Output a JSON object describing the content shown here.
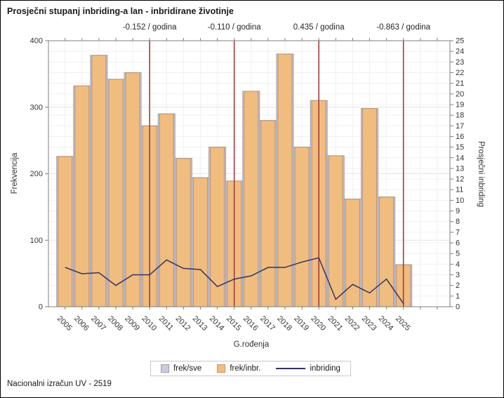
{
  "title": "Prosječni stupanj inbriding-a lan - inbridirane životinje",
  "footer": "Nacionalni izračun UV - 2519",
  "legend": {
    "items": [
      {
        "label": "frek/sve",
        "type": "box",
        "color": "#ccccdd",
        "border": "#9d9dae"
      },
      {
        "label": "frek/inbr.",
        "type": "box",
        "color": "#f0bd7e",
        "border": "#c9986a"
      },
      {
        "label": "inbriding",
        "type": "line",
        "color": "#333366"
      }
    ]
  },
  "chart_data": {
    "type": "bar",
    "title": "Prosječni stupanj inbriding-a lan - inbridirane životinje",
    "xlabel": "G.rođenja",
    "ylabel_left": "Frekvencija",
    "ylabel_right": "Prosječni inbriding",
    "ylim_left": [
      0,
      400
    ],
    "ylim_right": [
      0,
      25
    ],
    "y_ticks_left": [
      0,
      100,
      200,
      300,
      400
    ],
    "y_ticks_right": [
      0,
      1,
      2,
      3,
      4,
      5,
      6,
      7,
      8,
      9,
      10,
      11,
      12,
      13,
      14,
      15,
      16,
      17,
      18,
      19,
      20,
      21,
      22,
      23,
      24,
      25
    ],
    "grid": true,
    "legend_position": "bottom",
    "categories": [
      "2005",
      "2006",
      "2007",
      "2008",
      "2009",
      "2010",
      "2011",
      "2012",
      "2013",
      "2014",
      "2015",
      "2016",
      "2017",
      "2018",
      "2019",
      "2020",
      "2021",
      "2022",
      "2023",
      "2024",
      "2025"
    ],
    "series": [
      {
        "name": "frek/sve",
        "type": "bar",
        "axis": "left",
        "color": "#ccccdd",
        "border": "#9d9dae",
        "values": [
          226,
          332,
          378,
          342,
          352,
          272,
          290,
          223,
          194,
          240,
          189,
          324,
          280,
          380,
          240,
          310,
          227,
          162,
          298,
          165,
          63
        ]
      },
      {
        "name": "frek/inbr.",
        "type": "bar",
        "axis": "left",
        "color": "#f0bd7e",
        "border": "#b98e72",
        "values": [
          226,
          332,
          378,
          342,
          352,
          272,
          290,
          223,
          194,
          240,
          189,
          324,
          280,
          380,
          240,
          310,
          227,
          162,
          298,
          165,
          63
        ]
      },
      {
        "name": "inbriding",
        "type": "line",
        "axis": "right",
        "color": "#333366",
        "values": [
          3.7,
          3.1,
          3.2,
          2.0,
          3.0,
          3.0,
          4.4,
          3.6,
          3.5,
          1.9,
          2.6,
          2.9,
          3.7,
          3.7,
          4.2,
          4.6,
          0.7,
          2.1,
          1.3,
          2.6,
          0.3
        ]
      }
    ],
    "annotations": [
      {
        "label": "-0.152 / godina",
        "x_year": "2010"
      },
      {
        "label": "-0.110 / godina",
        "x_year": "2015"
      },
      {
        "label": "0.435 / godina",
        "x_year": "2020"
      },
      {
        "label": "-0.863 / godina",
        "x_year": "2025"
      }
    ],
    "annotation_line_color": "#a43d3d",
    "colors": {
      "frame": "#7f7f7f",
      "grid_minor": "#f0f0f0",
      "grid_major": "#e3e3e3",
      "tick_text": "#333333"
    }
  }
}
